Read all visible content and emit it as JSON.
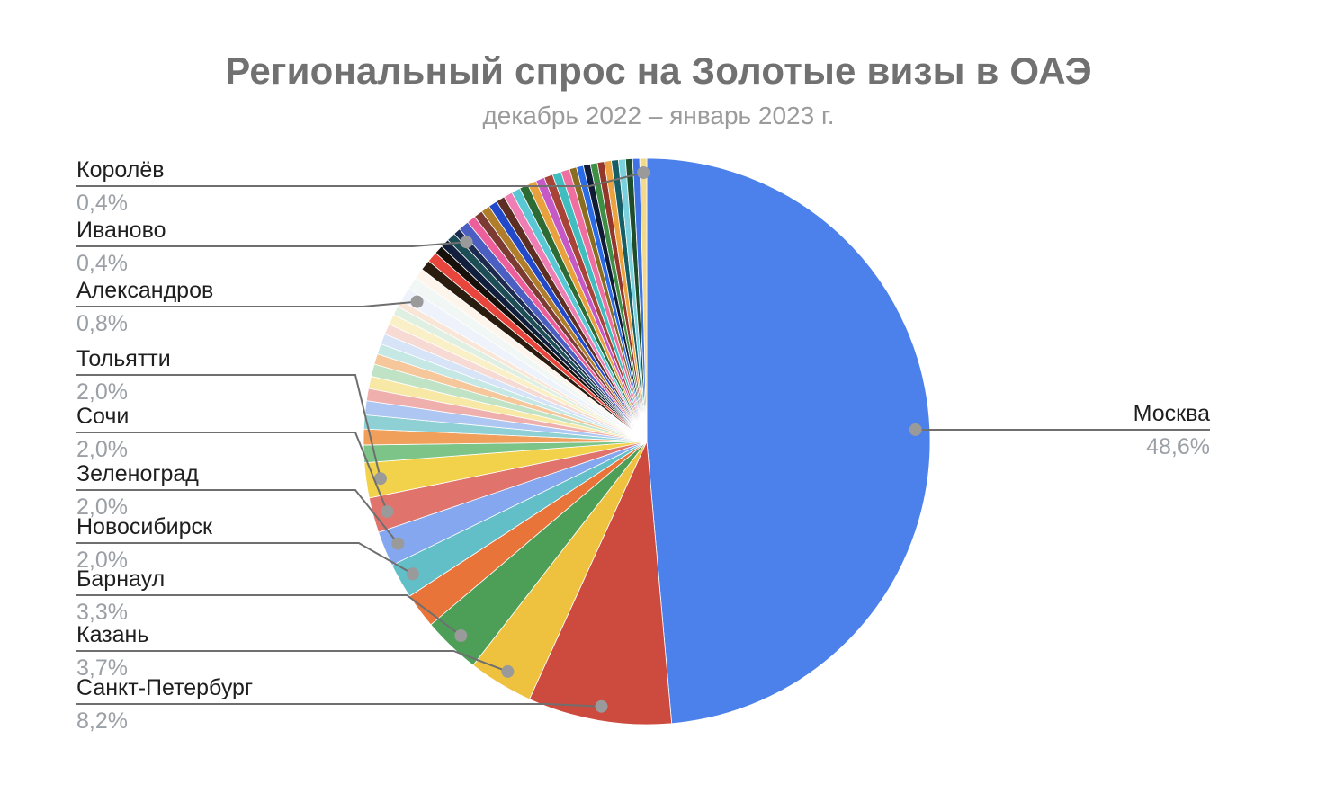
{
  "chart_data": {
    "type": "pie",
    "title": "Региональный спрос на Золотые визы в ОАЭ",
    "subtitle": "декабрь 2022 – январь 2023 г.",
    "value_unit": "%",
    "decimal_separator": ",",
    "start_angle_deg": 0,
    "direction": "clockwise",
    "legend_position": "none (callout labels)",
    "labeled_slices": [
      {
        "name": "Москва",
        "value": 48.6,
        "display": "48,6%"
      },
      {
        "name": "Санкт-Петербург",
        "value": 8.2,
        "display": "8,2%"
      },
      {
        "name": "Казань",
        "value": 3.7,
        "display": "3,7%"
      },
      {
        "name": "Барнаул",
        "value": 3.3,
        "display": "3,3%"
      },
      {
        "name": "Новосибирск",
        "value": 2.0,
        "display": "2,0%"
      },
      {
        "name": "Зеленоград",
        "value": 2.0,
        "display": "2,0%"
      },
      {
        "name": "Сочи",
        "value": 2.0,
        "display": "2,0%"
      },
      {
        "name": "Тольятти",
        "value": 2.0,
        "display": "2,0%"
      },
      {
        "name": "Александров",
        "value": 0.8,
        "display": "0,8%"
      },
      {
        "name": "Иваново",
        "value": 0.4,
        "display": "0,4%"
      },
      {
        "name": "Королёв",
        "value": 0.4,
        "display": "0,4%"
      }
    ],
    "segments": [
      {
        "label": "Москва",
        "value": 48.6,
        "display": "48,6%",
        "color": "#4c80ea"
      },
      {
        "label": "Санкт-Петербург",
        "value": 8.2,
        "display": "8,2%",
        "color": "#cc4a3e"
      },
      {
        "label": "Казань",
        "value": 3.7,
        "display": "3,7%",
        "color": "#eec13f"
      },
      {
        "label": "Барнаул",
        "value": 3.3,
        "display": "3,3%",
        "color": "#4d9f58"
      },
      {
        "label": null,
        "value": 2.0,
        "color": "#e9743a"
      },
      {
        "label": "Новосибирск",
        "value": 2.0,
        "display": "2,0%",
        "color": "#62bec7"
      },
      {
        "label": "Зеленоград",
        "value": 2.0,
        "display": "2,0%",
        "color": "#84a7ef"
      },
      {
        "label": "Сочи",
        "value": 2.0,
        "display": "2,0%",
        "color": "#e0746c"
      },
      {
        "label": "Тольятти",
        "value": 2.0,
        "display": "2,0%",
        "color": "#f2d24b"
      },
      {
        "label": null,
        "value": 1.0,
        "color": "#7cc488"
      },
      {
        "label": null,
        "value": 0.9,
        "color": "#f0a05a"
      },
      {
        "label": null,
        "value": 0.8,
        "color": "#8ed0d4"
      },
      {
        "label": null,
        "value": 0.8,
        "color": "#aec7f2"
      },
      {
        "label": null,
        "value": 0.7,
        "color": "#efafac"
      },
      {
        "label": null,
        "value": 0.7,
        "color": "#f7e8a6"
      },
      {
        "label": null,
        "value": 0.7,
        "color": "#c0e3c6"
      },
      {
        "label": null,
        "value": 0.6,
        "color": "#f5c79b"
      },
      {
        "label": null,
        "value": 0.6,
        "color": "#c5e8e5"
      },
      {
        "label": null,
        "value": 0.6,
        "color": "#d7e3f7"
      },
      {
        "label": null,
        "value": 0.6,
        "color": "#f7dad4"
      },
      {
        "label": null,
        "value": 0.6,
        "color": "#faf0c8"
      },
      {
        "label": null,
        "value": 0.5,
        "color": "#dff0e2"
      },
      {
        "label": null,
        "value": 0.4,
        "color": "#fae6d7"
      },
      {
        "label": "Александров",
        "value": 0.8,
        "display": "0,8%",
        "color": "#eef3fb"
      },
      {
        "label": null,
        "value": 0.7,
        "color": "#f0f7f4"
      },
      {
        "label": null,
        "value": 0.6,
        "color": "#fdf4ec"
      },
      {
        "label": null,
        "value": 0.6,
        "color": "#2a1c0e"
      },
      {
        "label": null,
        "value": 0.6,
        "color": "#e8453c"
      },
      {
        "label": null,
        "value": 0.5,
        "color": "#17100a"
      },
      {
        "label": null,
        "value": 0.5,
        "color": "#121f3d"
      },
      {
        "label": null,
        "value": 0.5,
        "color": "#1d4e56"
      },
      {
        "label": "Иваново",
        "value": 0.4,
        "display": "0,4%",
        "color": "#1b2a4d"
      },
      {
        "label": null,
        "value": 0.6,
        "color": "#4a5fc1"
      },
      {
        "label": null,
        "value": 0.5,
        "color": "#ec5f9a"
      },
      {
        "label": null,
        "value": 0.5,
        "color": "#7c3b32"
      },
      {
        "label": null,
        "value": 0.5,
        "color": "#b07d2b"
      },
      {
        "label": null,
        "value": 0.5,
        "color": "#2149c9"
      },
      {
        "label": null,
        "value": 0.5,
        "color": "#5c2e24"
      },
      {
        "label": null,
        "value": 0.5,
        "color": "#ef7eb5"
      },
      {
        "label": null,
        "value": 0.5,
        "color": "#59c7d4"
      },
      {
        "label": null,
        "value": 0.5,
        "color": "#2d6b34"
      },
      {
        "label": null,
        "value": 0.5,
        "color": "#e8a13d"
      },
      {
        "label": null,
        "value": 0.5,
        "color": "#c559c5"
      },
      {
        "label": null,
        "value": 0.5,
        "color": "#a84338"
      },
      {
        "label": null,
        "value": 0.5,
        "color": "#3fbdbf"
      },
      {
        "label": null,
        "value": 0.5,
        "color": "#ee6fa0"
      },
      {
        "label": null,
        "value": 0.4,
        "color": "#8a6d1f"
      },
      {
        "label": null,
        "value": 0.4,
        "color": "#2a6be8"
      },
      {
        "label": null,
        "value": 0.4,
        "color": "#101c36"
      },
      {
        "label": null,
        "value": 0.4,
        "color": "#3c8f45"
      },
      {
        "label": null,
        "value": 0.4,
        "color": "#93362b"
      },
      {
        "label": null,
        "value": 0.4,
        "color": "#eca23e"
      },
      {
        "label": null,
        "value": 0.4,
        "color": "#155e66"
      },
      {
        "label": null,
        "value": 0.4,
        "color": "#7ad0dc"
      },
      {
        "label": null,
        "value": 0.4,
        "color": "#1e4d2b"
      },
      {
        "label": null,
        "value": 0.4,
        "color": "#3f73e3"
      },
      {
        "label": "Королёв",
        "value": 0.4,
        "display": "0,4%",
        "color": "#f2d98c"
      }
    ],
    "callout_style": {
      "line_color": "#6f6f6f",
      "dot_color": "#9a9a9a",
      "name_color": "#1f1f1f",
      "percent_color": "#9aa0a6"
    }
  }
}
